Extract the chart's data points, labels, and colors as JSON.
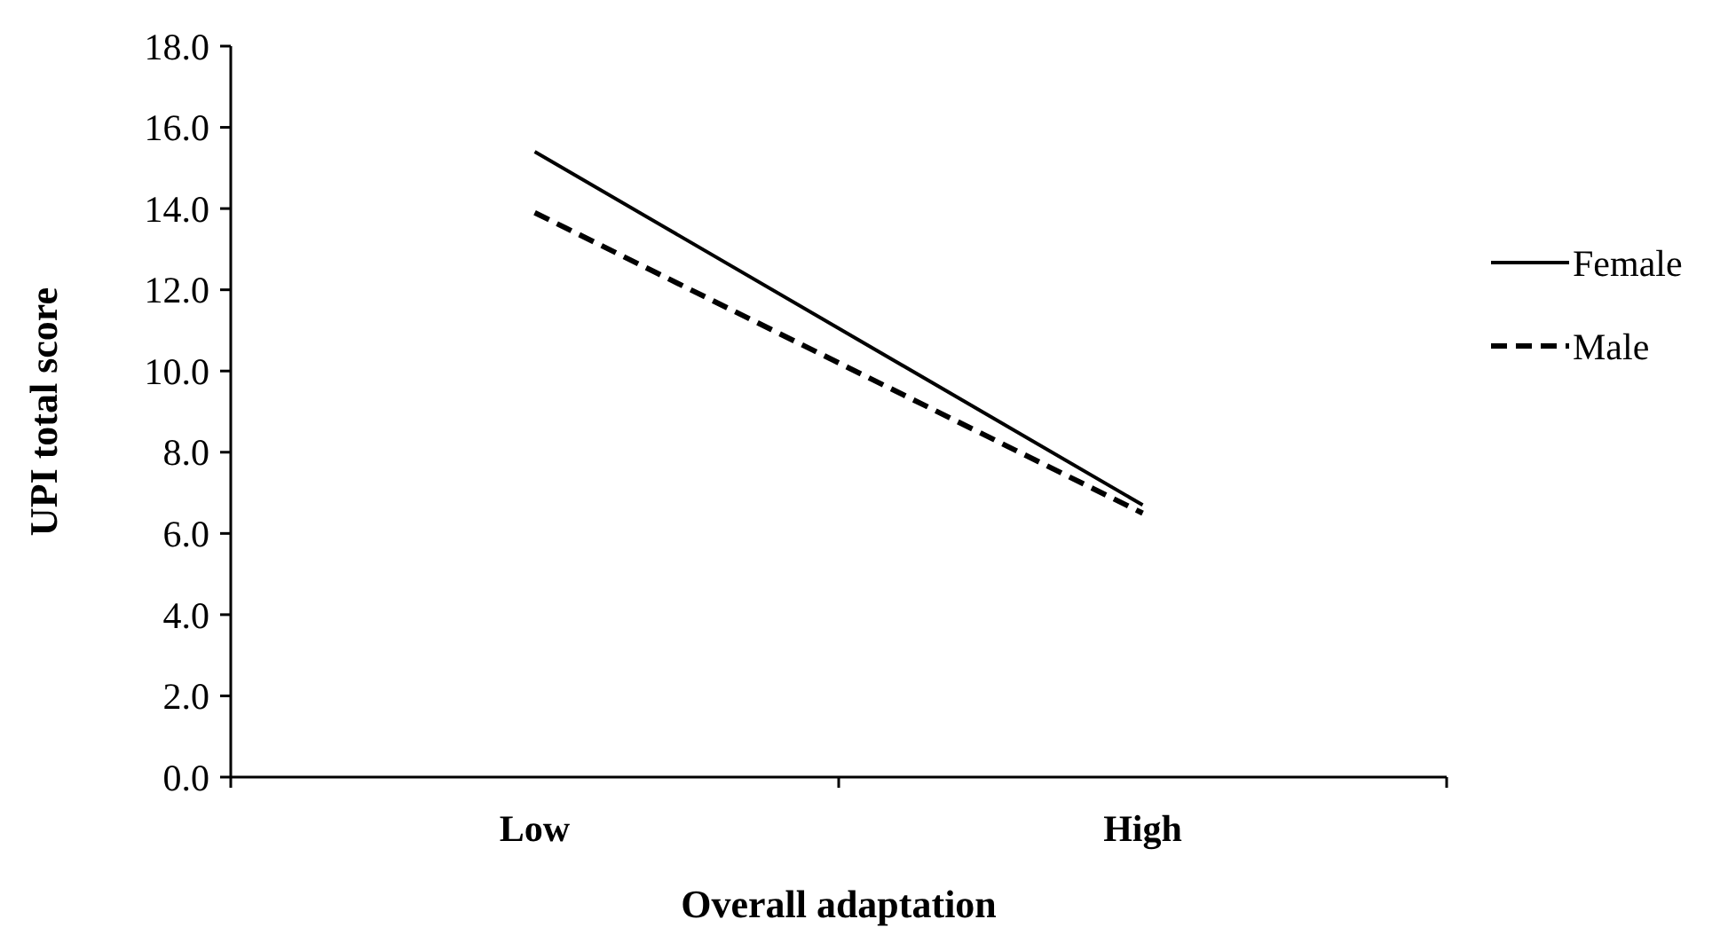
{
  "chart_data": {
    "type": "line",
    "xlabel": "Overall adaptation",
    "ylabel": "UPI total score",
    "categories": [
      "Low",
      "High"
    ],
    "series": [
      {
        "name": "Female",
        "color": "#000000",
        "line_style": "solid",
        "values": [
          15.4,
          6.7
        ]
      },
      {
        "name": "Male",
        "color": "#000000",
        "line_style": "dashed",
        "values": [
          13.9,
          6.5
        ]
      }
    ],
    "ylim": [
      0,
      18
    ],
    "yticks": [
      {
        "value": 0,
        "label": "0.0"
      },
      {
        "value": 2,
        "label": "2.0"
      },
      {
        "value": 4,
        "label": "4.0"
      },
      {
        "value": 6,
        "label": "6.0"
      },
      {
        "value": 8,
        "label": "8.0"
      },
      {
        "value": 10,
        "label": "10.0"
      },
      {
        "value": 12,
        "label": "12.0"
      },
      {
        "value": 14,
        "label": "14.0"
      },
      {
        "value": 16,
        "label": "16.0"
      },
      {
        "value": 18,
        "label": "18.0"
      }
    ],
    "grid": false,
    "legend": "right"
  }
}
